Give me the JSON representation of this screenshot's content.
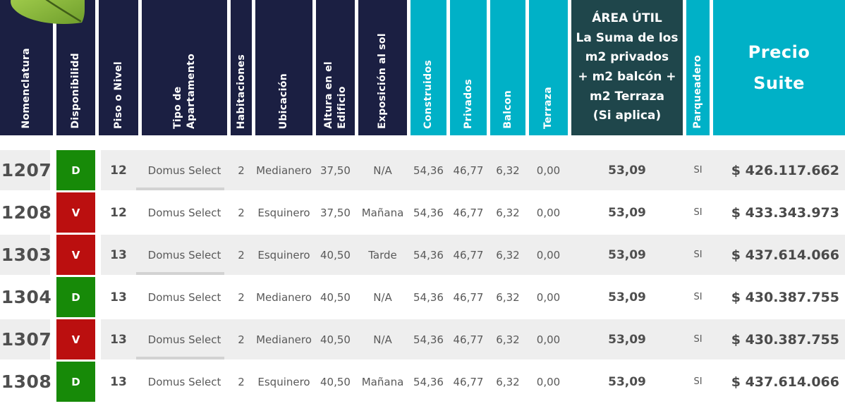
{
  "colors": {
    "header_navy": "#1b1f42",
    "header_teal": "#00b1c7",
    "header_slate": "#1f464b",
    "available_green": "#178a08",
    "occupied_red": "#bb0f0f",
    "row_stripe_gray": "#eeeeee",
    "underline_gray": "#d2d2d2",
    "text_dark": "#4f4f4f",
    "text_medium": "#595959"
  },
  "decor": {
    "leaf": "leaf-icon"
  },
  "header": {
    "columns": [
      {
        "key": "nomenclatura",
        "label": "Nomenclatura",
        "style": "navy",
        "orientation": "vertical"
      },
      {
        "key": "disponibilidad",
        "label": "Disponibilidd",
        "style": "navy",
        "orientation": "vertical"
      },
      {
        "key": "piso",
        "label": "Piso o Nivel",
        "style": "navy",
        "orientation": "vertical"
      },
      {
        "key": "tipo",
        "label": "Tipo de\nApartamento",
        "style": "navy",
        "orientation": "vertical"
      },
      {
        "key": "habitaciones",
        "label": "Habitaciones",
        "style": "navy",
        "orientation": "vertical"
      },
      {
        "key": "ubicacion",
        "label": "Ubicación",
        "style": "navy",
        "orientation": "vertical"
      },
      {
        "key": "altura",
        "label": "Altura en el\nEdificio",
        "style": "navy",
        "orientation": "vertical"
      },
      {
        "key": "exposicion",
        "label": "Exposición al sol",
        "style": "navy",
        "orientation": "vertical"
      },
      {
        "key": "construidos",
        "label": "Construidos",
        "style": "teal",
        "orientation": "vertical"
      },
      {
        "key": "privados",
        "label": "Privados",
        "style": "teal",
        "orientation": "vertical"
      },
      {
        "key": "balcon",
        "label": "Balcon",
        "style": "teal",
        "orientation": "vertical"
      },
      {
        "key": "terraza",
        "label": "Terraza",
        "style": "teal",
        "orientation": "vertical"
      },
      {
        "key": "area_util",
        "label": "ÁREA ÚTIL\nLa Suma de los\nm2 privados\n+ m2 balcón +\nm2 Terraza\n(Si aplica)",
        "style": "slate",
        "orientation": "horizontal"
      },
      {
        "key": "parqueadero",
        "label": "Parqueadero",
        "style": "teal",
        "orientation": "vertical"
      },
      {
        "key": "precio",
        "label": "Precio\nSuite",
        "style": "teal",
        "orientation": "horizontal-large"
      }
    ]
  },
  "rows": [
    {
      "nomenclatura": "1207",
      "disponibilidad": "D",
      "estado": "green",
      "piso": "12",
      "tipo": "Domus Select",
      "habitaciones": "2",
      "ubicacion": "Medianero",
      "altura": "37,50",
      "exposicion": "N/A",
      "construidos": "54,36",
      "privados": "46,77",
      "balcon": "6,32",
      "terraza": "0,00",
      "area_util": "53,09",
      "parqueadero": "SI",
      "precio": "$ 426.117.662"
    },
    {
      "nomenclatura": "1208",
      "disponibilidad": "V",
      "estado": "red",
      "piso": "12",
      "tipo": "Domus Select",
      "habitaciones": "2",
      "ubicacion": "Esquinero",
      "altura": "37,50",
      "exposicion": "Mañana",
      "construidos": "54,36",
      "privados": "46,77",
      "balcon": "6,32",
      "terraza": "0,00",
      "area_util": "53,09",
      "parqueadero": "SI",
      "precio": "$ 433.343.973"
    },
    {
      "nomenclatura": "1303",
      "disponibilidad": "V",
      "estado": "red",
      "piso": "13",
      "tipo": "Domus Select",
      "habitaciones": "2",
      "ubicacion": "Esquinero",
      "altura": "40,50",
      "exposicion": "Tarde",
      "construidos": "54,36",
      "privados": "46,77",
      "balcon": "6,32",
      "terraza": "0,00",
      "area_util": "53,09",
      "parqueadero": "SI",
      "precio": "$ 437.614.066"
    },
    {
      "nomenclatura": "1304",
      "disponibilidad": "D",
      "estado": "green",
      "piso": "13",
      "tipo": "Domus Select",
      "habitaciones": "2",
      "ubicacion": "Medianero",
      "altura": "40,50",
      "exposicion": "N/A",
      "construidos": "54,36",
      "privados": "46,77",
      "balcon": "6,32",
      "terraza": "0,00",
      "area_util": "53,09",
      "parqueadero": "SI",
      "precio": "$ 430.387.755"
    },
    {
      "nomenclatura": "1307",
      "disponibilidad": "V",
      "estado": "red",
      "piso": "13",
      "tipo": "Domus Select",
      "habitaciones": "2",
      "ubicacion": "Medianero",
      "altura": "40,50",
      "exposicion": "N/A",
      "construidos": "54,36",
      "privados": "46,77",
      "balcon": "6,32",
      "terraza": "0,00",
      "area_util": "53,09",
      "parqueadero": "SI",
      "precio": "$ 430.387.755"
    },
    {
      "nomenclatura": "1308",
      "disponibilidad": "D",
      "estado": "green",
      "piso": "13",
      "tipo": "Domus Select",
      "habitaciones": "2",
      "ubicacion": "Esquinero",
      "altura": "40,50",
      "exposicion": "Mañana",
      "construidos": "54,36",
      "privados": "46,77",
      "balcon": "6,32",
      "terraza": "0,00",
      "area_util": "53,09",
      "parqueadero": "SI",
      "precio": "$ 437.614.066"
    }
  ]
}
